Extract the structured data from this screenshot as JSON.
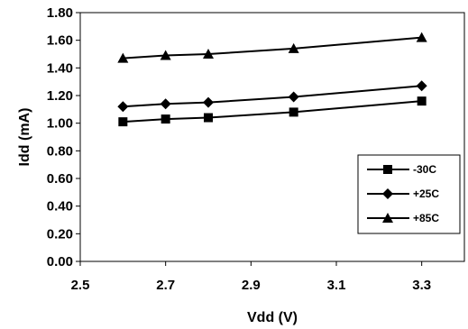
{
  "chart_data": {
    "type": "line",
    "title": "",
    "xlabel": "Vdd (V)",
    "ylabel": "Idd (mA)",
    "xlim": [
      2.5,
      3.4
    ],
    "ylim": [
      0.0,
      1.8
    ],
    "x_ticks": [
      "2.5",
      "2.7",
      "2.9",
      "3.1",
      "3.3"
    ],
    "y_ticks": [
      "0.00",
      "0.20",
      "0.40",
      "0.60",
      "0.80",
      "1.00",
      "1.20",
      "1.40",
      "1.60",
      "1.80"
    ],
    "grid": false,
    "legend_position": "bottom-right",
    "series": [
      {
        "name": "-30C",
        "marker": "square",
        "x": [
          2.6,
          2.7,
          2.8,
          3.0,
          3.3
        ],
        "y": [
          1.01,
          1.03,
          1.04,
          1.08,
          1.16
        ]
      },
      {
        "name": "+25C",
        "marker": "diamond",
        "x": [
          2.6,
          2.7,
          2.8,
          3.0,
          3.3
        ],
        "y": [
          1.12,
          1.14,
          1.15,
          1.19,
          1.27
        ]
      },
      {
        "name": "+85C",
        "marker": "triangle",
        "x": [
          2.6,
          2.7,
          2.8,
          3.0,
          3.3
        ],
        "y": [
          1.47,
          1.49,
          1.5,
          1.54,
          1.62
        ]
      }
    ],
    "colors": {
      "line": "#000000",
      "background": "#ffffff"
    }
  }
}
